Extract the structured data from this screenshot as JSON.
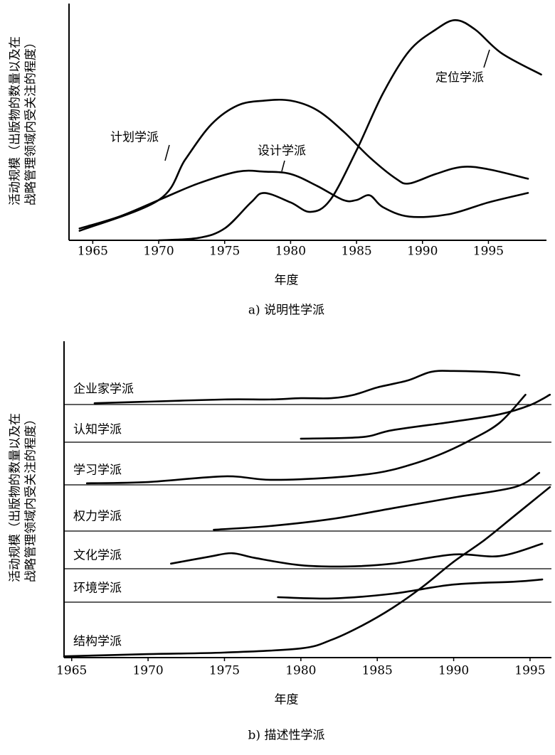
{
  "chart_data": [
    {
      "type": "line",
      "y_label_lines": [
        "活动规模（出版物的数量以及在",
        "战略管理领域内受关注的程度）"
      ],
      "x_label": "年度",
      "caption": "a) 说明性学派",
      "xlim": [
        1963.2,
        1999.4
      ],
      "xticks": [
        1965,
        1970,
        1975,
        1980,
        1985,
        1990,
        1995
      ],
      "ylim": [
        0,
        100
      ],
      "series": [
        {
          "name": "计划学派",
          "color": "#000000",
          "x": [
            1964,
            1970,
            1972,
            1974,
            1976,
            1978,
            1980,
            1982,
            1984,
            1986,
            1988,
            1989,
            1991,
            1993,
            1995,
            1998
          ],
          "values": [
            4,
            17,
            34,
            49,
            57,
            59,
            59,
            55,
            46,
            35,
            26,
            24,
            28,
            31,
            30,
            26
          ]
        },
        {
          "name": "设计学派",
          "color": "#000000",
          "x": [
            1964,
            1967,
            1970,
            1973,
            1976,
            1978,
            1980,
            1982,
            1984,
            1985,
            1986,
            1987,
            1989,
            1992,
            1995,
            1998
          ],
          "values": [
            5,
            10,
            17,
            24,
            29,
            29,
            28,
            23,
            17,
            17,
            19,
            14,
            10,
            11,
            16,
            20
          ]
        },
        {
          "name": "定位学派",
          "color": "#000000",
          "x": [
            1970,
            1973,
            1975,
            1977,
            1978,
            1980,
            1981.5,
            1983,
            1985,
            1987,
            1989,
            1991,
            1992.5,
            1994,
            1996,
            1999
          ],
          "values": [
            0,
            1,
            5,
            16,
            20,
            16,
            12,
            17,
            38,
            62,
            80,
            89,
            93,
            89,
            79,
            70
          ]
        }
      ]
    },
    {
      "type": "line",
      "y_label_lines": [
        "活动规模（出版物的数量以及在",
        "战略管理领域内受关注的程度）"
      ],
      "x_label": "年度",
      "caption": "b) 描述性学派",
      "xlim": [
        1964.5,
        1996.4
      ],
      "xticks": [
        1965,
        1970,
        1975,
        1980,
        1985,
        1990,
        1995
      ],
      "ylim": [
        0,
        100
      ],
      "series": [
        {
          "name": "企业家学派",
          "color": "#000000",
          "x": [
            1966.5,
            1970,
            1975,
            1978,
            1980,
            1982,
            1983.5,
            1985,
            1987,
            1988.5,
            1990,
            1993,
            1994.3
          ],
          "values": [
            80.4,
            80.9,
            81.6,
            81.6,
            82.0,
            82.0,
            83.1,
            85.4,
            87.6,
            90.3,
            90.6,
            90.1,
            89.2
          ]
        },
        {
          "name": "认知学派",
          "color": "#000000",
          "x": [
            1980,
            1984,
            1986,
            1990,
            1993,
            1995,
            1996.3
          ],
          "values": [
            69.2,
            69.7,
            71.9,
            74.6,
            76.9,
            79.8,
            83.1
          ]
        },
        {
          "name": "学习学派",
          "color": "#000000",
          "x": [
            1966,
            1970,
            1975,
            1978,
            1982,
            1985,
            1987,
            1989,
            1991,
            1993,
            1994.7
          ],
          "values": [
            55.1,
            55.5,
            57.3,
            56.2,
            56.9,
            58.4,
            60.7,
            64.0,
            68.5,
            74.2,
            83.1
          ]
        },
        {
          "name": "权力学派",
          "color": "#000000",
          "x": [
            1974.3,
            1978,
            1982,
            1986,
            1990,
            1994,
            1995.6
          ],
          "values": [
            40.4,
            41.6,
            43.8,
            47.2,
            50.6,
            53.9,
            58.4
          ]
        },
        {
          "name": "文化学派",
          "color": "#000000",
          "x": [
            1971.5,
            1974,
            1975.5,
            1977,
            1980,
            1983,
            1986,
            1990,
            1993,
            1995.8
          ],
          "values": [
            29.7,
            31.9,
            33.0,
            31.5,
            29.2,
            28.8,
            29.7,
            32.6,
            32.1,
            36.0
          ]
        },
        {
          "name": "环境学派",
          "color": "#000000",
          "x": [
            1978.5,
            1982,
            1986,
            1990,
            1994,
            1995.8
          ],
          "values": [
            19.1,
            18.7,
            20.2,
            23.1,
            24.0,
            24.7
          ]
        },
        {
          "name": "结构学派",
          "color": "#000000",
          "x": [
            1964.5,
            1970,
            1975,
            1980,
            1982,
            1984,
            1986,
            1988,
            1990,
            1992,
            1994,
            1996.3
          ],
          "values": [
            0.4,
            1.1,
            1.6,
            2.9,
            5.6,
            10.1,
            15.7,
            22.5,
            30.3,
            37.1,
            44.9,
            53.9
          ]
        }
      ]
    }
  ]
}
